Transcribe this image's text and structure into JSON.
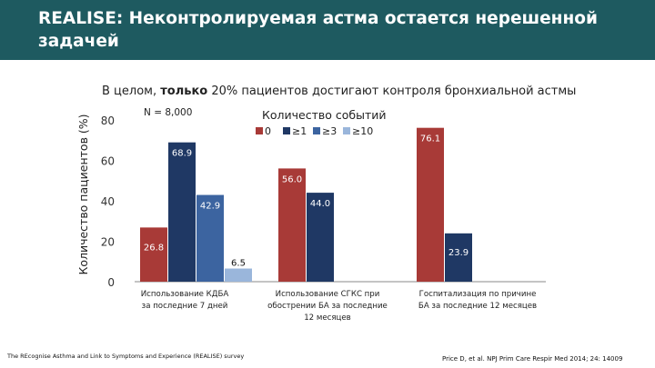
{
  "header": {
    "title": "REALISE: Неконтролируемая астма остается нерешенной задачей",
    "subtitle_prefix": "В целом, ",
    "subtitle_bold": "только",
    "subtitle_rest": " 20% пациентов достигают контроля бронхиальной астмы"
  },
  "chart_data": {
    "type": "bar",
    "ylabel": "Количество пациентов (%)",
    "ylim": [
      0,
      80
    ],
    "yticks": [
      "0",
      "20",
      "40",
      "60",
      "80"
    ],
    "annotation": "N = 8,000",
    "legend_title": "Количество событий",
    "categories": [
      "Использование КДБА за последние 7 дней",
      "Использование СГКС при обострении БА за последние 12 месяцев",
      "Госпитализация по причине БА за последние 12 месяцев"
    ],
    "series": [
      {
        "name": "0",
        "color": "#a83a37",
        "values": [
          26.8,
          56.0,
          76.1
        ],
        "labels": [
          "26.8",
          "56.0",
          "76.1"
        ]
      },
      {
        "name": "≥1",
        "color": "#1f3864",
        "values": [
          68.9,
          44.0,
          23.9
        ],
        "labels": [
          "68.9",
          "44.0",
          "23.9"
        ]
      },
      {
        "name": "≥3",
        "color": "#3c64a0",
        "values": [
          42.9,
          null,
          null
        ],
        "labels": [
          "42.9",
          "",
          ""
        ]
      },
      {
        "name": "≥10",
        "color": "#9ab6db",
        "values": [
          6.5,
          null,
          null
        ],
        "labels": [
          "6.5",
          "",
          ""
        ]
      }
    ],
    "category_lines": [
      [
        "Использование КДБА",
        "за последние 7 дней"
      ],
      [
        "Использование СГКС при",
        "обострении БА за последние",
        "12 месяцев"
      ],
      [
        "Госпитализация по причине",
        "БА за последние 12 месяцев"
      ]
    ]
  },
  "footer": {
    "survey": "The REcognise Asthma and Link to Symptoms and Experience (REALISE) survey",
    "citation": "Price D, et al. NPJ Prim Care Respir Med 2014; 24: 14009"
  }
}
